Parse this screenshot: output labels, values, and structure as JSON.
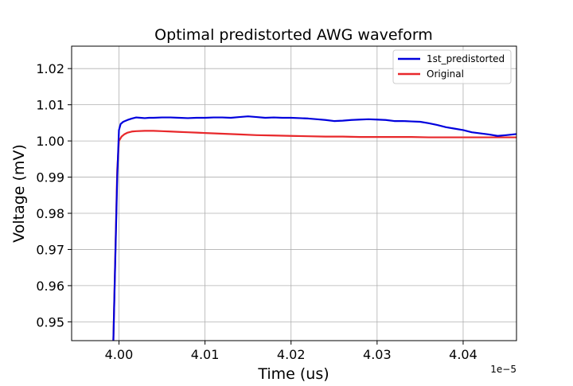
{
  "chart_data": {
    "type": "line",
    "title": "Optimal predistorted AWG waveform",
    "xlabel": "Time (us)",
    "ylabel": "Voltage (mV)",
    "x_offset_label": "1e−5",
    "xlim": [
      3.9945,
      4.0462
    ],
    "ylim": [
      0.9448,
      1.0262
    ],
    "x_ticks": [
      4.0,
      4.01,
      4.02,
      4.03,
      4.04
    ],
    "x_tick_labels": [
      "4.00",
      "4.01",
      "4.02",
      "4.03",
      "4.04"
    ],
    "y_ticks": [
      0.95,
      0.96,
      0.97,
      0.98,
      0.99,
      1.0,
      1.01,
      1.02
    ],
    "y_tick_labels": [
      "0.95",
      "0.96",
      "0.97",
      "0.98",
      "0.99",
      "1.00",
      "1.01",
      "1.02"
    ],
    "grid": true,
    "legend_position": "top-right",
    "series": [
      {
        "name": "1st_predistorted",
        "color": "#0000dd",
        "x": [
          3.99935,
          3.9998,
          4.0,
          4.0002,
          4.0005,
          4.001,
          4.0015,
          4.002,
          4.0025,
          4.003,
          4.0035,
          4.004,
          4.005,
          4.006,
          4.007,
          4.008,
          4.009,
          4.01,
          4.011,
          4.012,
          4.013,
          4.014,
          4.015,
          4.016,
          4.017,
          4.018,
          4.019,
          4.02,
          4.021,
          4.022,
          4.023,
          4.024,
          4.025,
          4.026,
          4.027,
          4.028,
          4.029,
          4.03,
          4.031,
          4.032,
          4.033,
          4.034,
          4.035,
          4.036,
          4.037,
          4.038,
          4.039,
          4.04,
          4.041,
          4.042,
          4.043,
          4.044,
          4.045,
          4.0462
        ],
        "values": [
          0.9448,
          0.99,
          1.003,
          1.0047,
          1.0053,
          1.0058,
          1.0062,
          1.0065,
          1.0064,
          1.0063,
          1.0064,
          1.0064,
          1.0065,
          1.0065,
          1.0064,
          1.0063,
          1.0064,
          1.0064,
          1.0065,
          1.0065,
          1.0064,
          1.0066,
          1.0068,
          1.0066,
          1.0064,
          1.0065,
          1.0064,
          1.0064,
          1.0063,
          1.0062,
          1.006,
          1.0058,
          1.0055,
          1.0056,
          1.0058,
          1.0059,
          1.006,
          1.0059,
          1.0058,
          1.0055,
          1.0055,
          1.0054,
          1.0053,
          1.0049,
          1.0044,
          1.0038,
          1.0034,
          1.003,
          1.0024,
          1.0021,
          1.0018,
          1.0014,
          1.0016,
          1.0019
        ]
      },
      {
        "name": "Original",
        "color": "#e8282b",
        "x": [
          3.99935,
          3.9998,
          4.0,
          4.0003,
          4.0006,
          4.001,
          4.0015,
          4.002,
          4.003,
          4.004,
          4.005,
          4.006,
          4.007,
          4.008,
          4.009,
          4.01,
          4.012,
          4.014,
          4.016,
          4.018,
          4.02,
          4.022,
          4.024,
          4.026,
          4.028,
          4.03,
          4.032,
          4.034,
          4.036,
          4.038,
          4.04,
          4.042,
          4.044,
          4.0462
        ],
        "values": [
          0.9448,
          0.992,
          1.0,
          1.0012,
          1.0018,
          1.0023,
          1.0026,
          1.0027,
          1.0028,
          1.0028,
          1.0027,
          1.0026,
          1.0025,
          1.0024,
          1.0023,
          1.0022,
          1.002,
          1.0018,
          1.0016,
          1.0015,
          1.0014,
          1.0013,
          1.0012,
          1.0012,
          1.0011,
          1.0011,
          1.0011,
          1.0011,
          1.001,
          1.001,
          1.001,
          1.001,
          1.001,
          1.001
        ]
      }
    ]
  }
}
